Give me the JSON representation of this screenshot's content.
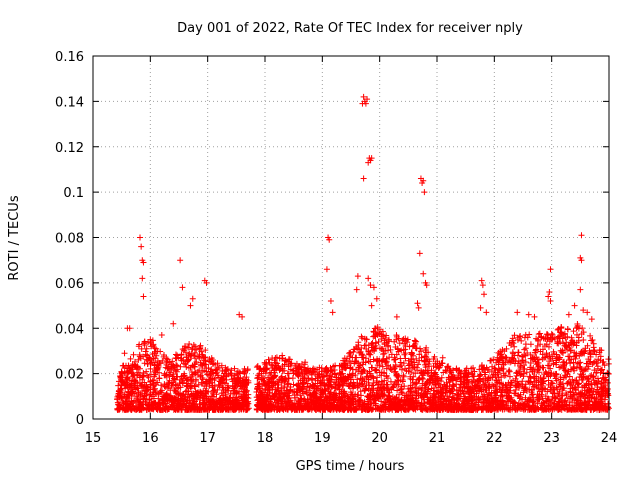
{
  "chart_data": {
    "type": "scatter",
    "title": "Day 001 of 2022, Rate Of TEC Index for receiver nply",
    "xlabel": "GPS time / hours",
    "ylabel": "ROTI / TECUs",
    "xlim": [
      15,
      24
    ],
    "ylim": [
      0,
      0.16
    ],
    "xticks": [
      "15",
      "16",
      "17",
      "18",
      "19",
      "20",
      "21",
      "22",
      "23",
      "24"
    ],
    "yticks": [
      "0",
      "0.02",
      "0.04",
      "0.06",
      "0.08",
      "0.1",
      "0.12",
      "0.14",
      "0.16"
    ],
    "grid": true,
    "marker": "plus",
    "series": [
      {
        "name": "ROTI",
        "color": "#ff0000",
        "segments": [
          {
            "x_start": 15.42,
            "x_end": 17.72
          },
          {
            "x_start": 17.85,
            "x_end": 24.0
          }
        ],
        "points": [
          {
            "x": 15.82,
            "y": 0.08
          },
          {
            "x": 15.84,
            "y": 0.076
          },
          {
            "x": 15.86,
            "y": 0.07
          },
          {
            "x": 15.88,
            "y": 0.069
          },
          {
            "x": 15.86,
            "y": 0.062
          },
          {
            "x": 15.88,
            "y": 0.054
          },
          {
            "x": 15.6,
            "y": 0.04
          },
          {
            "x": 15.64,
            "y": 0.04
          },
          {
            "x": 16.52,
            "y": 0.07
          },
          {
            "x": 16.56,
            "y": 0.058
          },
          {
            "x": 16.95,
            "y": 0.061
          },
          {
            "x": 16.98,
            "y": 0.06
          },
          {
            "x": 16.74,
            "y": 0.053
          },
          {
            "x": 16.7,
            "y": 0.05
          },
          {
            "x": 17.55,
            "y": 0.046
          },
          {
            "x": 17.6,
            "y": 0.045
          },
          {
            "x": 19.1,
            "y": 0.08
          },
          {
            "x": 19.12,
            "y": 0.079
          },
          {
            "x": 19.08,
            "y": 0.066
          },
          {
            "x": 19.15,
            "y": 0.052
          },
          {
            "x": 19.18,
            "y": 0.047
          },
          {
            "x": 19.72,
            "y": 0.142
          },
          {
            "x": 19.74,
            "y": 0.14
          },
          {
            "x": 19.76,
            "y": 0.139
          },
          {
            "x": 19.78,
            "y": 0.141
          },
          {
            "x": 19.7,
            "y": 0.139
          },
          {
            "x": 19.82,
            "y": 0.115
          },
          {
            "x": 19.84,
            "y": 0.114
          },
          {
            "x": 19.86,
            "y": 0.115
          },
          {
            "x": 19.8,
            "y": 0.113
          },
          {
            "x": 19.72,
            "y": 0.106
          },
          {
            "x": 19.62,
            "y": 0.063
          },
          {
            "x": 19.6,
            "y": 0.057
          },
          {
            "x": 19.8,
            "y": 0.062
          },
          {
            "x": 19.84,
            "y": 0.059
          },
          {
            "x": 19.9,
            "y": 0.058
          },
          {
            "x": 19.95,
            "y": 0.053
          },
          {
            "x": 19.86,
            "y": 0.05
          },
          {
            "x": 20.72,
            "y": 0.106
          },
          {
            "x": 20.74,
            "y": 0.104
          },
          {
            "x": 20.76,
            "y": 0.105
          },
          {
            "x": 20.78,
            "y": 0.1
          },
          {
            "x": 20.7,
            "y": 0.073
          },
          {
            "x": 20.76,
            "y": 0.064
          },
          {
            "x": 20.8,
            "y": 0.06
          },
          {
            "x": 20.82,
            "y": 0.059
          },
          {
            "x": 20.66,
            "y": 0.051
          },
          {
            "x": 20.68,
            "y": 0.049
          },
          {
            "x": 20.3,
            "y": 0.045
          },
          {
            "x": 21.78,
            "y": 0.061
          },
          {
            "x": 21.8,
            "y": 0.059
          },
          {
            "x": 21.82,
            "y": 0.055
          },
          {
            "x": 21.76,
            "y": 0.049
          },
          {
            "x": 21.86,
            "y": 0.047
          },
          {
            "x": 22.98,
            "y": 0.066
          },
          {
            "x": 22.96,
            "y": 0.056
          },
          {
            "x": 22.94,
            "y": 0.054
          },
          {
            "x": 22.98,
            "y": 0.052
          },
          {
            "x": 23.52,
            "y": 0.081
          },
          {
            "x": 23.5,
            "y": 0.071
          },
          {
            "x": 23.52,
            "y": 0.07
          },
          {
            "x": 23.5,
            "y": 0.057
          },
          {
            "x": 23.4,
            "y": 0.05
          },
          {
            "x": 23.55,
            "y": 0.048
          },
          {
            "x": 23.62,
            "y": 0.047
          },
          {
            "x": 23.7,
            "y": 0.044
          },
          {
            "x": 22.4,
            "y": 0.047
          },
          {
            "x": 22.6,
            "y": 0.046
          },
          {
            "x": 22.7,
            "y": 0.045
          },
          {
            "x": 23.3,
            "y": 0.046
          },
          {
            "x": 15.45,
            "y": 0.01
          },
          {
            "x": 15.5,
            "y": 0.02
          },
          {
            "x": 15.55,
            "y": 0.029
          },
          {
            "x": 16.0,
            "y": 0.035
          },
          {
            "x": 16.2,
            "y": 0.037
          },
          {
            "x": 16.4,
            "y": 0.042
          },
          {
            "x": 17.7,
            "y": 0.022
          },
          {
            "x": 17.9,
            "y": 0.01
          },
          {
            "x": 18.3,
            "y": 0.028
          },
          {
            "x": 18.7,
            "y": 0.025
          },
          {
            "x": 21.1,
            "y": 0.027
          },
          {
            "x": 21.5,
            "y": 0.02
          },
          {
            "x": 23.98,
            "y": 0.02
          }
        ]
      }
    ]
  }
}
